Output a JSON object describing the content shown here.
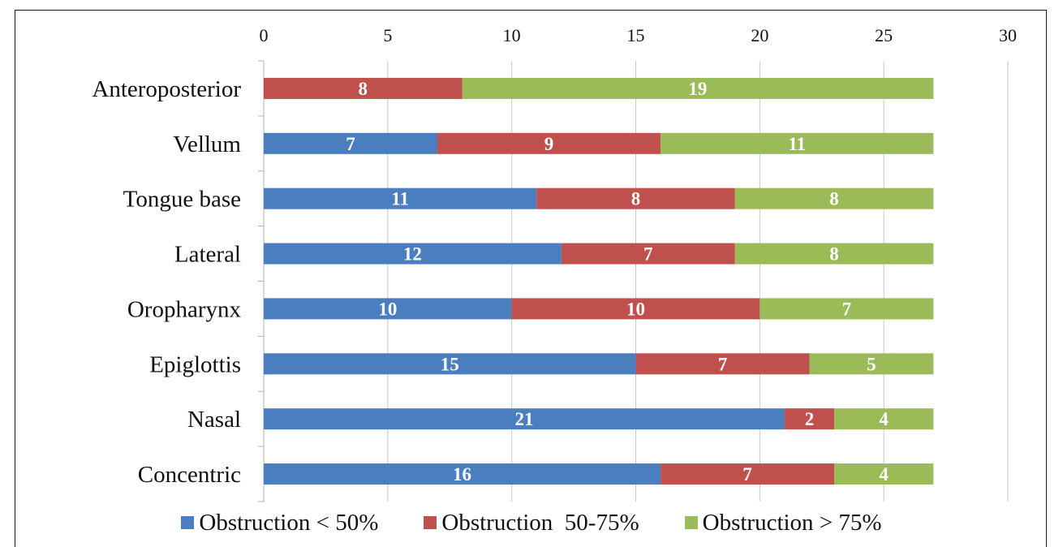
{
  "chart_data": {
    "type": "bar",
    "orientation": "horizontal",
    "stacked": true,
    "categories": [
      "Anteroposterior",
      "Vellum",
      "Tongue base",
      "Lateral",
      "Oropharynx",
      "Epiglottis",
      "Nasal",
      "Concentric"
    ],
    "series": [
      {
        "name": "Obstruction < 50%",
        "color": "#4a7ebf",
        "values": [
          0,
          7,
          11,
          12,
          10,
          15,
          21,
          16
        ]
      },
      {
        "name": "Obstruction  50-75%",
        "color": "#c0504d",
        "values": [
          8,
          9,
          8,
          7,
          10,
          7,
          2,
          7
        ]
      },
      {
        "name": "Obstruction > 75%",
        "color": "#9bbb59",
        "values": [
          19,
          11,
          8,
          8,
          7,
          5,
          4,
          4
        ]
      }
    ],
    "xlim": [
      0,
      30
    ],
    "xticks": [
      "0",
      "5",
      "10",
      "15",
      "20",
      "25",
      "30"
    ],
    "x_axis_position": "top",
    "grid": true,
    "data_labels": true,
    "legend_position": "bottom"
  }
}
